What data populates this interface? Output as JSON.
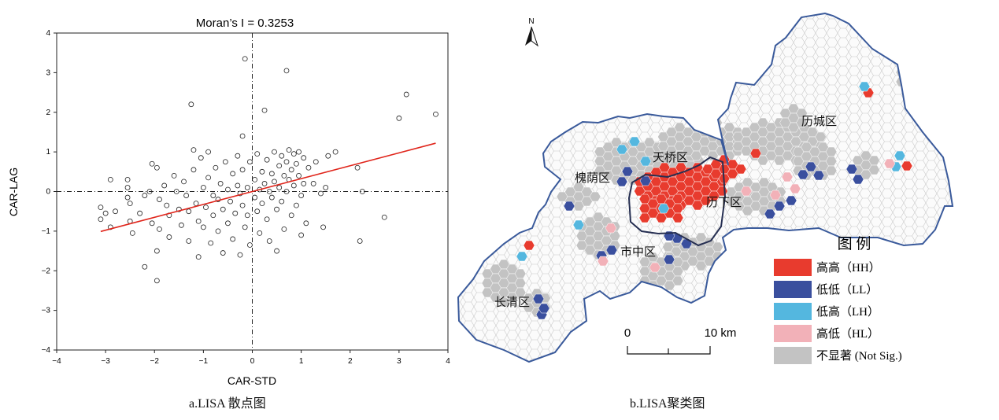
{
  "panel_a": {
    "caption": "a.LISA 散点图",
    "chart_data": {
      "type": "scatter",
      "title": "Moran’s I = 0.3253",
      "xlabel": "CAR-STD",
      "ylabel": "CAR-LAG",
      "xlim": [
        -4,
        4
      ],
      "ylim": [
        -4,
        4
      ],
      "xticks": [
        "−4",
        "−3",
        "−2",
        "−1",
        "0",
        "1",
        "2",
        "3",
        "4"
      ],
      "yticks": [
        "4",
        "3",
        "2",
        "1",
        "0",
        "−1",
        "−2",
        "−3",
        "−4"
      ],
      "grid": false,
      "reference_lines": {
        "x": 0,
        "y": 0,
        "style": "dash-dot"
      },
      "regression_line": {
        "slope": 0.3253,
        "intercept": 0.0,
        "x_range": [
          -3.1,
          3.75
        ],
        "color": "#e0251b"
      },
      "points": [
        [
          -3.1,
          -0.4
        ],
        [
          -3.1,
          -0.7
        ],
        [
          -3.0,
          -0.55
        ],
        [
          -2.9,
          0.3
        ],
        [
          -2.9,
          -0.9
        ],
        [
          -2.8,
          -0.5
        ],
        [
          -2.55,
          0.3
        ],
        [
          -2.55,
          0.1
        ],
        [
          -2.55,
          -0.15
        ],
        [
          -2.5,
          -0.3
        ],
        [
          -2.5,
          -0.75
        ],
        [
          -2.45,
          -1.05
        ],
        [
          -2.3,
          -0.55
        ],
        [
          -2.2,
          -1.9
        ],
        [
          -2.2,
          -0.1
        ],
        [
          -2.1,
          0.0
        ],
        [
          -2.05,
          0.7
        ],
        [
          -2.05,
          -0.8
        ],
        [
          -1.95,
          0.6
        ],
        [
          -1.95,
          -1.5
        ],
        [
          -1.95,
          -2.25
        ],
        [
          -1.9,
          -0.2
        ],
        [
          -1.9,
          -0.95
        ],
        [
          -1.8,
          0.15
        ],
        [
          -1.75,
          -0.35
        ],
        [
          -1.7,
          -0.6
        ],
        [
          -1.7,
          -1.15
        ],
        [
          -1.6,
          0.4
        ],
        [
          -1.55,
          0.0
        ],
        [
          -1.5,
          -0.45
        ],
        [
          -1.45,
          -0.85
        ],
        [
          -1.4,
          0.25
        ],
        [
          -1.35,
          -0.1
        ],
        [
          -1.3,
          -0.5
        ],
        [
          -1.3,
          -1.25
        ],
        [
          -1.25,
          2.2
        ],
        [
          -1.2,
          1.05
        ],
        [
          -1.2,
          0.55
        ],
        [
          -1.15,
          -0.3
        ],
        [
          -1.1,
          -0.75
        ],
        [
          -1.1,
          -1.65
        ],
        [
          -1.05,
          0.85
        ],
        [
          -1.0,
          0.1
        ],
        [
          -1.0,
          -0.9
        ],
        [
          -0.95,
          -0.4
        ],
        [
          -0.9,
          1.0
        ],
        [
          -0.9,
          0.35
        ],
        [
          -0.85,
          -1.3
        ],
        [
          -0.8,
          -0.1
        ],
        [
          -0.8,
          -0.6
        ],
        [
          -0.75,
          0.6
        ],
        [
          -0.7,
          -0.2
        ],
        [
          -0.7,
          -1.0
        ],
        [
          -0.65,
          0.2
        ],
        [
          -0.6,
          -0.45
        ],
        [
          -0.6,
          -1.55
        ],
        [
          -0.55,
          0.75
        ],
        [
          -0.5,
          0.05
        ],
        [
          -0.5,
          -0.8
        ],
        [
          -0.45,
          -0.25
        ],
        [
          -0.4,
          0.45
        ],
        [
          -0.4,
          -1.2
        ],
        [
          -0.35,
          -0.55
        ],
        [
          -0.3,
          0.9
        ],
        [
          -0.3,
          0.15
        ],
        [
          -0.25,
          -0.05
        ],
        [
          -0.25,
          -1.6
        ],
        [
          -0.2,
          1.4
        ],
        [
          -0.2,
          0.55
        ],
        [
          -0.2,
          -0.35
        ],
        [
          -0.15,
          3.35
        ],
        [
          -0.15,
          -0.9
        ],
        [
          -0.1,
          0.1
        ],
        [
          -0.1,
          -0.6
        ],
        [
          -0.05,
          0.75
        ],
        [
          -0.05,
          -1.35
        ],
        [
          0.05,
          0.3
        ],
        [
          0.05,
          -0.15
        ],
        [
          0.1,
          0.95
        ],
        [
          0.1,
          -0.5
        ],
        [
          0.15,
          0.05
        ],
        [
          0.15,
          -1.05
        ],
        [
          0.2,
          0.5
        ],
        [
          0.2,
          -0.3
        ],
        [
          0.25,
          2.05
        ],
        [
          0.25,
          0.2
        ],
        [
          0.3,
          0.8
        ],
        [
          0.3,
          -0.7
        ],
        [
          0.35,
          0.0
        ],
        [
          0.35,
          -1.25
        ],
        [
          0.4,
          0.45
        ],
        [
          0.4,
          -0.15
        ],
        [
          0.45,
          1.0
        ],
        [
          0.45,
          0.25
        ],
        [
          0.5,
          -0.45
        ],
        [
          0.5,
          -1.5
        ],
        [
          0.55,
          0.65
        ],
        [
          0.55,
          0.1
        ],
        [
          0.6,
          0.9
        ],
        [
          0.6,
          -0.25
        ],
        [
          0.65,
          0.4
        ],
        [
          0.65,
          -0.95
        ],
        [
          0.7,
          3.05
        ],
        [
          0.7,
          0.75
        ],
        [
          0.7,
          0.0
        ],
        [
          0.75,
          1.05
        ],
        [
          0.75,
          0.3
        ],
        [
          0.8,
          -0.6
        ],
        [
          0.8,
          0.55
        ],
        [
          0.85,
          0.95
        ],
        [
          0.85,
          0.15
        ],
        [
          0.9,
          -0.35
        ],
        [
          0.9,
          0.7
        ],
        [
          0.95,
          1.0
        ],
        [
          0.95,
          0.4
        ],
        [
          1.0,
          -0.1
        ],
        [
          1.0,
          -1.1
        ],
        [
          1.05,
          0.85
        ],
        [
          1.05,
          0.2
        ],
        [
          1.1,
          -0.8
        ],
        [
          1.15,
          0.6
        ],
        [
          1.25,
          0.2
        ],
        [
          1.3,
          0.75
        ],
        [
          1.4,
          -0.05
        ],
        [
          1.45,
          -0.9
        ],
        [
          1.5,
          0.1
        ],
        [
          1.55,
          0.9
        ],
        [
          1.7,
          1.0
        ],
        [
          2.15,
          0.6
        ],
        [
          2.2,
          -1.25
        ],
        [
          2.25,
          0.0
        ],
        [
          2.7,
          -0.65
        ],
        [
          3.0,
          1.85
        ],
        [
          3.15,
          2.45
        ],
        [
          3.75,
          1.95
        ]
      ]
    }
  },
  "panel_b": {
    "caption": "b.LISA聚类图",
    "north": "N",
    "districts": [
      "历城区",
      "天桥区",
      "槐荫区",
      "历下区",
      "市中区",
      "长清区"
    ],
    "legend": {
      "title": "图  例",
      "items": [
        {
          "label": "高高（HH）",
          "color": "#e83b2e"
        },
        {
          "label": "低低（LL）",
          "color": "#3a4f9e"
        },
        {
          "label": "低高（LH）",
          "color": "#54b7df"
        },
        {
          "label": "高低（HL）",
          "color": "#f2b1b8"
        },
        {
          "label": "不显著 (Not Sig.)",
          "color": "#c3c3c3"
        }
      ]
    },
    "scale_bar": {
      "start": "0",
      "end": "10 km"
    },
    "boundary_color": "#3a5a9b",
    "central_outline_color": "#262f52"
  }
}
